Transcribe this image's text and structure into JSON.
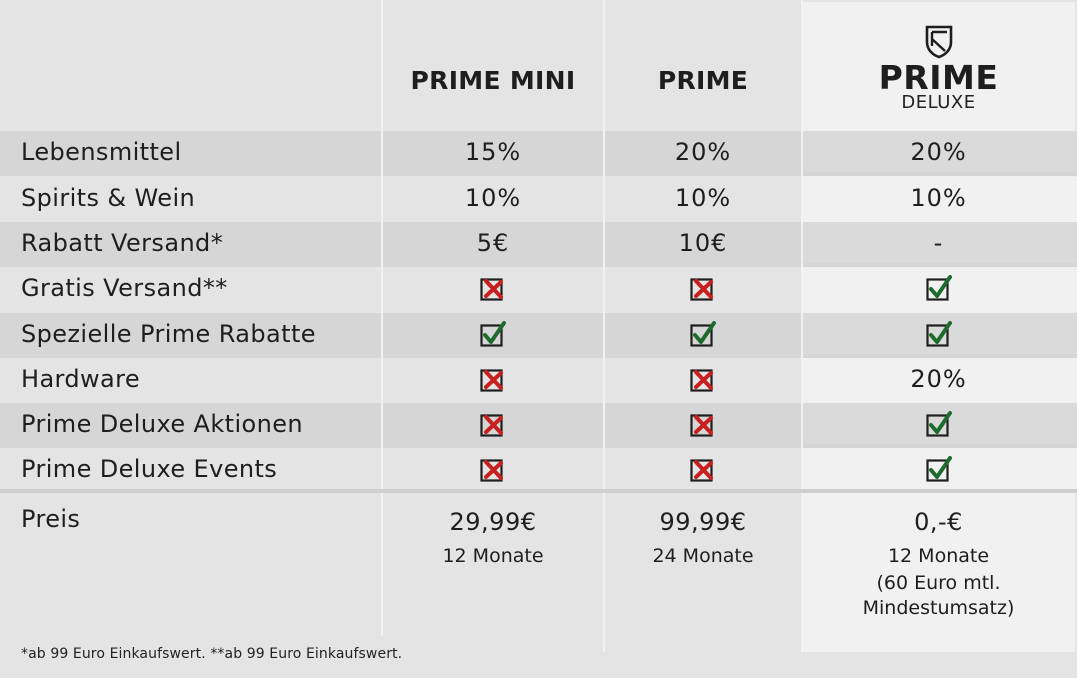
{
  "plans": [
    {
      "name": "PRIME MINI"
    },
    {
      "name": "PRIME"
    },
    {
      "name": "PRIME",
      "subtitle": "DELUXE",
      "logo": "shield-logo-icon"
    }
  ],
  "rows": [
    {
      "label": "Lebensmittel",
      "values": [
        "15%",
        "20%",
        "20%"
      ]
    },
    {
      "label": "Spirits & Wein",
      "values": [
        "10%",
        "10%",
        "10%"
      ]
    },
    {
      "label": "Rabatt Versand*",
      "values": [
        "5€",
        "10€",
        "-"
      ]
    },
    {
      "label": "Gratis Versand**",
      "values": [
        "cross-icon",
        "cross-icon",
        "check-icon"
      ]
    },
    {
      "label": "Spezielle Prime Rabatte",
      "values": [
        "check-icon",
        "check-icon",
        "check-icon"
      ]
    },
    {
      "label": "Hardware",
      "values": [
        "cross-icon",
        "cross-icon",
        "20%"
      ]
    },
    {
      "label": "Prime Deluxe Aktionen",
      "values": [
        "cross-icon",
        "cross-icon",
        "check-icon"
      ]
    },
    {
      "label": "Prime Deluxe Events",
      "values": [
        "cross-icon",
        "cross-icon",
        "check-icon"
      ]
    }
  ],
  "price": {
    "label": "Preis",
    "columns": [
      {
        "amount": "29,99€",
        "duration": "12 Monate"
      },
      {
        "amount": "99,99€",
        "duration": "24 Monate"
      },
      {
        "amount": "0,-€",
        "duration": "12 Monate",
        "note_line1": "(60 Euro mtl.",
        "note_line2": "Mindestumsatz)"
      }
    ]
  },
  "footnote": "*ab 99 Euro Einkaufswert. **ab 99 Euro Einkaufswert.",
  "colors": {
    "check": "#1f6b2e",
    "cross": "#c8201e",
    "box": "#1e1e1e",
    "shaded_row": "#d6d6d6",
    "background": "#e4e4e4",
    "deluxe_column": "#f1f1f1"
  }
}
